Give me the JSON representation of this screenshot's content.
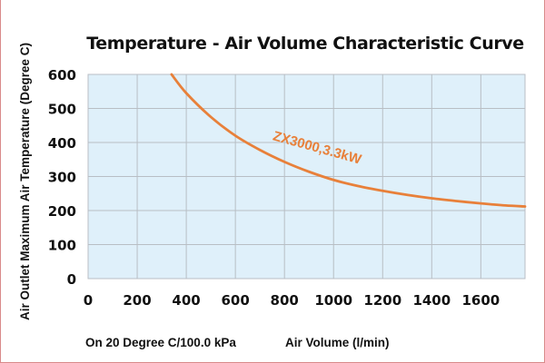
{
  "chart_data": {
    "type": "line",
    "title": "Temperature - Air Volume Characteristic Curve",
    "xlabel": "Air Volume (l/min)",
    "ylabel": "Air Outlet Maximum Air Temperature (Degree C)",
    "condition_note": "On 20 Degree C/100.0 kPa",
    "xlim": [
      0,
      1780
    ],
    "ylim": [
      0,
      600
    ],
    "x_ticks": [
      0,
      200,
      400,
      600,
      800,
      1000,
      1200,
      1400,
      1600
    ],
    "y_ticks": [
      0,
      100,
      200,
      300,
      400,
      500,
      600
    ],
    "grid": true,
    "legend": "inline label on curve",
    "series": [
      {
        "name": "ZX3000,3.3kW",
        "color": "#e8803a",
        "x": [
          340,
          400,
          500,
          600,
          700,
          800,
          900,
          1000,
          1100,
          1200,
          1300,
          1400,
          1500,
          1600,
          1700,
          1780
        ],
        "y": [
          600,
          545,
          475,
          420,
          378,
          343,
          314,
          290,
          272,
          258,
          246,
          236,
          228,
          221,
          215,
          212
        ]
      }
    ]
  }
}
